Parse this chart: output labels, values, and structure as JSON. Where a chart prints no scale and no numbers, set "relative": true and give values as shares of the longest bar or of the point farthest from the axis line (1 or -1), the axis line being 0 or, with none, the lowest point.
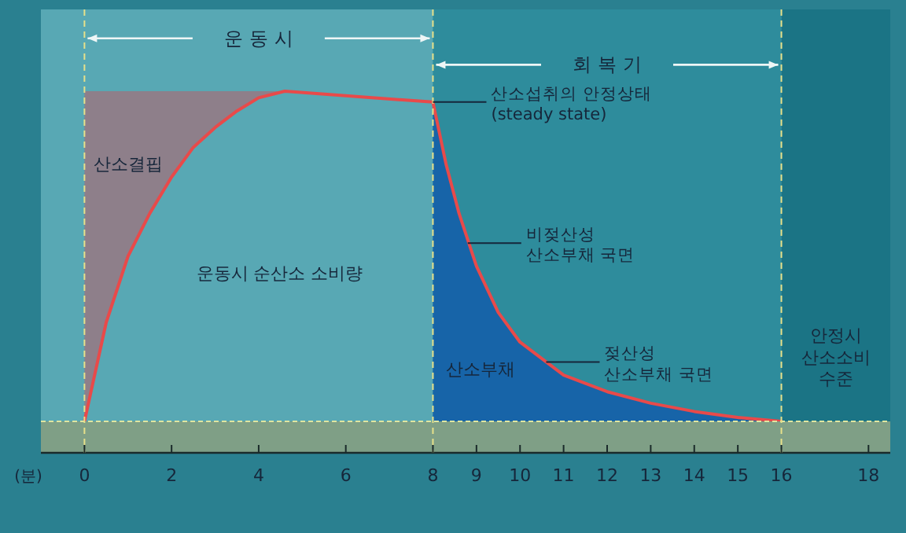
{
  "chart_data": {
    "type": "area",
    "relative": true,
    "xlabel": "(분)",
    "xlim": [
      -1,
      18.5
    ],
    "xticks": [
      0,
      2,
      4,
      6,
      8,
      9,
      10,
      11,
      12,
      13,
      14,
      15,
      16,
      18
    ],
    "bands": [
      {
        "axis": "x",
        "from": 8,
        "to": 16,
        "color": "#2e8c9c"
      },
      {
        "axis": "x",
        "from": 16,
        "to": 18.5,
        "color": "#1b7485"
      }
    ],
    "ref_lines": [
      {
        "axis": "x",
        "value": 0,
        "color": "#e6e08a",
        "line_style": "dashed"
      },
      {
        "axis": "x",
        "value": 8,
        "color": "#e6e08a",
        "line_style": "dashed"
      },
      {
        "axis": "x",
        "value": 16,
        "color": "#e6e08a",
        "line_style": "dashed"
      }
    ],
    "series": [
      {
        "color": "#8e7f8a",
        "x": [
          0,
          4.6
        ],
        "values": [
          1,
          1
        ]
      },
      {
        "color": "#58a8b4",
        "x": [
          0,
          0.5,
          1,
          1.5,
          2,
          2.5,
          3,
          3.5,
          4,
          4.6,
          8
        ],
        "values": [
          0,
          0.3,
          0.5,
          0.63,
          0.74,
          0.83,
          0.89,
          0.94,
          0.98,
          1,
          0.967
        ]
      },
      {
        "color": "#1764a8",
        "x": [
          8,
          8.3,
          8.6,
          9,
          9.5,
          10,
          10.5,
          11,
          12,
          13,
          14,
          15,
          16
        ],
        "values": [
          0.967,
          0.78,
          0.63,
          0.47,
          0.33,
          0.24,
          0.19,
          0.14,
          0.09,
          0.055,
          0.03,
          0.012,
          0
        ]
      },
      {
        "type": "line",
        "color": "#e84a4a",
        "x": [
          0,
          0.5,
          1,
          1.5,
          2,
          2.5,
          3,
          3.5,
          4,
          4.6,
          8,
          8.3,
          8.6,
          9,
          9.5,
          10,
          10.5,
          11,
          12,
          13,
          14,
          15,
          16
        ],
        "values": [
          0,
          0.3,
          0.5,
          0.63,
          0.74,
          0.83,
          0.89,
          0.94,
          0.98,
          1,
          0.967,
          0.78,
          0.63,
          0.47,
          0.33,
          0.24,
          0.19,
          0.14,
          0.09,
          0.055,
          0.03,
          0.012,
          0
        ]
      }
    ],
    "annotations": [
      "운 동 시",
      "회 복 기",
      "산소결핍",
      "운동시 순산소 소비량",
      "산소부채",
      "안정시\n산소소비\n수준",
      {
        "text": "산소섭취의 안정상태\n(steady state)",
        "x": 8,
        "y": 0.967
      },
      {
        "text": "비젖산성\n산소부채 국면",
        "x": 8.8,
        "y": 0.54
      },
      {
        "text": "젖산성\n산소부채 국면",
        "x": 10.6,
        "y": 0.18
      }
    ]
  }
}
